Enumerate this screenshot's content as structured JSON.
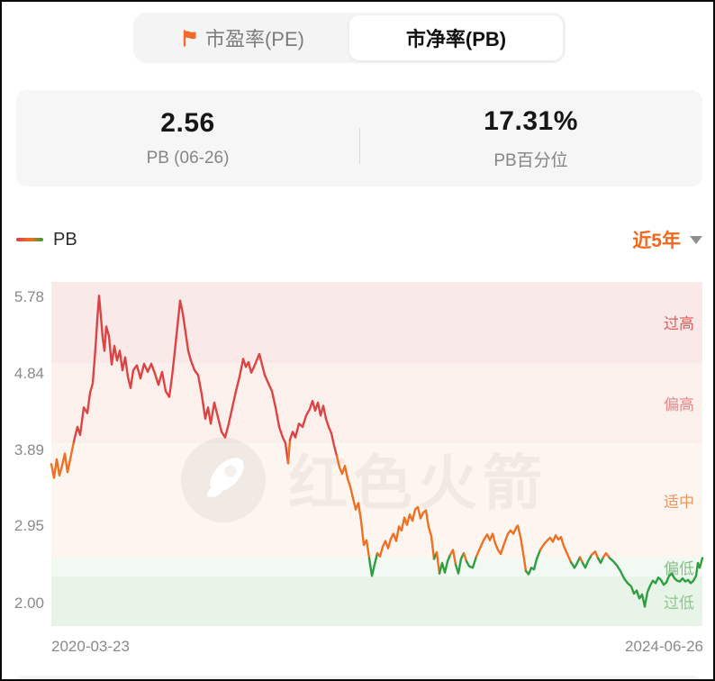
{
  "tabs": {
    "pe_label": "市盈率(PE)",
    "pb_label": "市净率(PB)"
  },
  "stats": {
    "pb_value": "2.56",
    "pb_label": "PB (06-26)",
    "percentile_value": "17.31%",
    "percentile_label": "PB百分位"
  },
  "legend": {
    "series_label": "PB",
    "range_label": "近5年"
  },
  "watermark_text": "红色火箭",
  "colors": {
    "accent_orange": "#f2671c",
    "flag": "#f26a2b"
  },
  "chart_data": {
    "type": "line",
    "title": "PB valuation trend (近5年)",
    "x_axis": {
      "start": "2020-03-23",
      "end": "2024-06-26"
    },
    "y_ticks": [
      "5.78",
      "4.84",
      "3.89",
      "2.95",
      "2.00"
    ],
    "value_top": 5.97,
    "value_bottom": 1.72,
    "grid": false,
    "legend_position": "top-left",
    "bands": [
      {
        "label": "过高",
        "from": 4.97,
        "to": 5.97,
        "bg": "#f9e9e8",
        "label_color": "#e05c5c"
      },
      {
        "label": "偏高",
        "from": 3.98,
        "to": 4.97,
        "bg": "#fcf0ed",
        "label_color": "#ec8585"
      },
      {
        "label": "适中",
        "from": 2.56,
        "to": 3.98,
        "bg": "#fdf6f0",
        "label_color": "#f0965d"
      },
      {
        "label": "偏低",
        "from": 2.33,
        "to": 2.56,
        "bg": "#f2f9f2",
        "label_color": "#82c186"
      },
      {
        "label": "过低",
        "from": 1.72,
        "to": 2.33,
        "bg": "#e9f4e8",
        "label_color": "#8cc68f"
      }
    ],
    "thresholds": {
      "red_above": 3.95,
      "green_below": 2.56
    },
    "line_colors": {
      "high": "#dc4343",
      "mid": "#ee7022",
      "low": "#2f9e41"
    },
    "points": [
      [
        0,
        3.72
      ],
      [
        3,
        3.55
      ],
      [
        6,
        3.78
      ],
      [
        9,
        3.58
      ],
      [
        12,
        3.7
      ],
      [
        15,
        3.85
      ],
      [
        18,
        3.62
      ],
      [
        21,
        3.78
      ],
      [
        25,
        4.0
      ],
      [
        29,
        4.18
      ],
      [
        32,
        4.08
      ],
      [
        36,
        4.42
      ],
      [
        40,
        4.35
      ],
      [
        43,
        4.6
      ],
      [
        46,
        4.72
      ],
      [
        49,
        5.15
      ],
      [
        51,
        5.5
      ],
      [
        53,
        5.8
      ],
      [
        55,
        5.55
      ],
      [
        57,
        5.28
      ],
      [
        59,
        5.12
      ],
      [
        61,
        5.42
      ],
      [
        64,
        5.3
      ],
      [
        67,
        4.95
      ],
      [
        70,
        5.18
      ],
      [
        73,
        5.0
      ],
      [
        76,
        5.12
      ],
      [
        79,
        4.88
      ],
      [
        82,
        5.04
      ],
      [
        85,
        4.8
      ],
      [
        88,
        4.66
      ],
      [
        91,
        4.88
      ],
      [
        95,
        4.94
      ],
      [
        99,
        4.78
      ],
      [
        103,
        4.96
      ],
      [
        107,
        4.86
      ],
      [
        111,
        4.96
      ],
      [
        115,
        4.84
      ],
      [
        119,
        4.7
      ],
      [
        123,
        4.86
      ],
      [
        127,
        4.62
      ],
      [
        131,
        4.55
      ],
      [
        134,
        4.8
      ],
      [
        137,
        5.1
      ],
      [
        140,
        5.42
      ],
      [
        143,
        5.74
      ],
      [
        146,
        5.58
      ],
      [
        149,
        5.35
      ],
      [
        152,
        5.12
      ],
      [
        155,
        5.0
      ],
      [
        159,
        4.88
      ],
      [
        163,
        4.82
      ],
      [
        167,
        4.58
      ],
      [
        171,
        4.28
      ],
      [
        174,
        4.42
      ],
      [
        177,
        4.22
      ],
      [
        181,
        4.48
      ],
      [
        185,
        4.3
      ],
      [
        189,
        4.12
      ],
      [
        193,
        4.05
      ],
      [
        197,
        4.22
      ],
      [
        201,
        4.42
      ],
      [
        205,
        4.62
      ],
      [
        209,
        4.8
      ],
      [
        213,
        5.02
      ],
      [
        216,
        4.92
      ],
      [
        219,
        4.98
      ],
      [
        222,
        4.85
      ],
      [
        225,
        4.92
      ],
      [
        228,
        5.0
      ],
      [
        231,
        5.08
      ],
      [
        234,
        4.95
      ],
      [
        237,
        4.82
      ],
      [
        241,
        4.72
      ],
      [
        245,
        4.62
      ],
      [
        249,
        4.42
      ],
      [
        253,
        4.18
      ],
      [
        257,
        4.05
      ],
      [
        260,
        3.98
      ],
      [
        263,
        3.73
      ],
      [
        265,
        4.02
      ],
      [
        268,
        4.12
      ],
      [
        271,
        4.05
      ],
      [
        275,
        4.22
      ],
      [
        279,
        4.18
      ],
      [
        283,
        4.32
      ],
      [
        287,
        4.4
      ],
      [
        290,
        4.5
      ],
      [
        293,
        4.38
      ],
      [
        296,
        4.48
      ],
      [
        299,
        4.32
      ],
      [
        302,
        4.44
      ],
      [
        305,
        4.28
      ],
      [
        308,
        4.18
      ],
      [
        311,
        4.1
      ],
      [
        314,
        3.95
      ],
      [
        317,
        3.82
      ],
      [
        320,
        3.68
      ],
      [
        323,
        3.6
      ],
      [
        326,
        3.7
      ],
      [
        329,
        3.54
      ],
      [
        332,
        3.44
      ],
      [
        335,
        3.3
      ],
      [
        338,
        3.16
      ],
      [
        341,
        3.24
      ],
      [
        344,
        3.02
      ],
      [
        347,
        2.72
      ],
      [
        350,
        2.78
      ],
      [
        353,
        2.56
      ],
      [
        356,
        2.34
      ],
      [
        359,
        2.48
      ],
      [
        362,
        2.62
      ],
      [
        365,
        2.58
      ],
      [
        368,
        2.7
      ],
      [
        371,
        2.77
      ],
      [
        374,
        2.68
      ],
      [
        377,
        2.8
      ],
      [
        380,
        2.86
      ],
      [
        383,
        2.77
      ],
      [
        386,
        2.95
      ],
      [
        389,
        2.9
      ],
      [
        392,
        3.06
      ],
      [
        395,
        2.97
      ],
      [
        398,
        3.1
      ],
      [
        401,
        3.02
      ],
      [
        404,
        3.16
      ],
      [
        407,
        3.19
      ],
      [
        410,
        3.05
      ],
      [
        413,
        3.12
      ],
      [
        416,
        3.15
      ],
      [
        419,
        2.94
      ],
      [
        422,
        2.83
      ],
      [
        425,
        2.55
      ],
      [
        428,
        2.63
      ],
      [
        431,
        2.37
      ],
      [
        434,
        2.5
      ],
      [
        437,
        2.38
      ],
      [
        440,
        2.52
      ],
      [
        443,
        2.6
      ],
      [
        446,
        2.66
      ],
      [
        449,
        2.48
      ],
      [
        452,
        2.37
      ],
      [
        455,
        2.55
      ],
      [
        458,
        2.62
      ],
      [
        461,
        2.52
      ],
      [
        464,
        2.46
      ],
      [
        468,
        2.44
      ],
      [
        472,
        2.58
      ],
      [
        476,
        2.68
      ],
      [
        480,
        2.78
      ],
      [
        484,
        2.85
      ],
      [
        487,
        2.78
      ],
      [
        490,
        2.86
      ],
      [
        493,
        2.74
      ],
      [
        496,
        2.66
      ],
      [
        499,
        2.61
      ],
      [
        503,
        2.74
      ],
      [
        507,
        2.86
      ],
      [
        510,
        2.9
      ],
      [
        513,
        2.86
      ],
      [
        516,
        2.93
      ],
      [
        518,
        2.96
      ],
      [
        521,
        2.82
      ],
      [
        524,
        2.62
      ],
      [
        527,
        2.4
      ],
      [
        530,
        2.36
      ],
      [
        533,
        2.44
      ],
      [
        536,
        2.42
      ],
      [
        539,
        2.55
      ],
      [
        543,
        2.66
      ],
      [
        547,
        2.73
      ],
      [
        551,
        2.78
      ],
      [
        554,
        2.81
      ],
      [
        557,
        2.76
      ],
      [
        560,
        2.84
      ],
      [
        563,
        2.79
      ],
      [
        566,
        2.82
      ],
      [
        569,
        2.71
      ],
      [
        573,
        2.61
      ],
      [
        577,
        2.51
      ],
      [
        581,
        2.44
      ],
      [
        584,
        2.5
      ],
      [
        587,
        2.57
      ],
      [
        590,
        2.5
      ],
      [
        593,
        2.44
      ],
      [
        596,
        2.52
      ],
      [
        600,
        2.6
      ],
      [
        604,
        2.64
      ],
      [
        607,
        2.56
      ],
      [
        610,
        2.5
      ],
      [
        613,
        2.57
      ],
      [
        616,
        2.62
      ],
      [
        620,
        2.56
      ],
      [
        624,
        2.52
      ],
      [
        628,
        2.47
      ],
      [
        632,
        2.4
      ],
      [
        636,
        2.31
      ],
      [
        640,
        2.25
      ],
      [
        644,
        2.21
      ],
      [
        647,
        2.12
      ],
      [
        650,
        2.16
      ],
      [
        653,
        2.06
      ],
      [
        656,
        2.11
      ],
      [
        659,
        1.96
      ],
      [
        662,
        2.14
      ],
      [
        665,
        2.22
      ],
      [
        668,
        2.28
      ],
      [
        671,
        2.25
      ],
      [
        674,
        2.32
      ],
      [
        677,
        2.29
      ],
      [
        680,
        2.23
      ],
      [
        683,
        2.26
      ],
      [
        686,
        2.34
      ],
      [
        689,
        2.37
      ],
      [
        692,
        2.31
      ],
      [
        695,
        2.28
      ],
      [
        698,
        2.27
      ],
      [
        701,
        2.31
      ],
      [
        704,
        2.27
      ],
      [
        707,
        2.29
      ],
      [
        710,
        2.25
      ],
      [
        713,
        2.28
      ],
      [
        716,
        2.34
      ],
      [
        718,
        2.5
      ],
      [
        720,
        2.44
      ],
      [
        723,
        2.56
      ]
    ]
  }
}
